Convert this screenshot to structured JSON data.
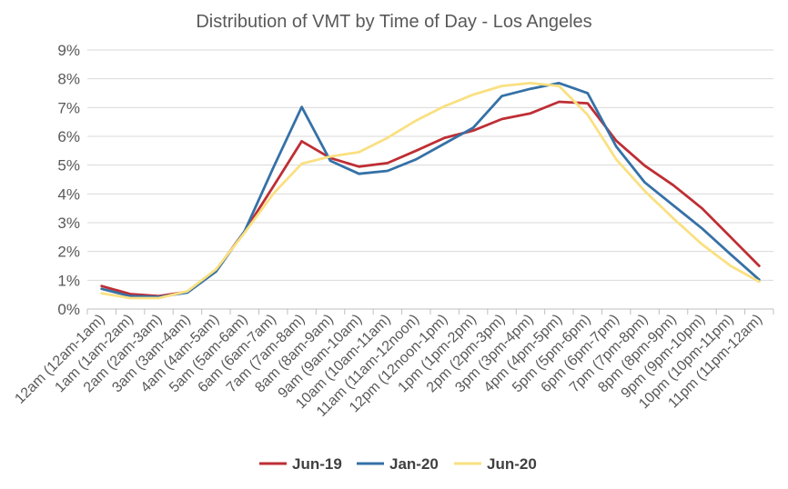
{
  "chart_data": {
    "type": "line",
    "title": "Distribution  of VMT by Time of Day - Los Angeles",
    "xlabel": "",
    "ylabel": "",
    "ylim": [
      0,
      9
    ],
    "y_ticks": [
      "0%",
      "1%",
      "2%",
      "3%",
      "4%",
      "5%",
      "6%",
      "7%",
      "8%",
      "9%"
    ],
    "grid": "horizontal",
    "legend_position": "bottom",
    "categories": [
      "12am (12am-1am)",
      "1am (1am-2am)",
      "2am (2am-3am)",
      "3am (3am-4am)",
      "4am (4am-5am)",
      "5am (5am-6am)",
      "6am (6am-7am)",
      "7am (7am-8am)",
      "8am (8am-9am)",
      "9am (9am-10am)",
      "10am (10am-11am)",
      "11am (11am-12noon)",
      "12pm (12noon-1pm)",
      "1pm (1pm-2pm)",
      "2pm (2pm-3pm)",
      "3pm (3pm-4pm)",
      "4pm (4pm-5pm)",
      "5pm (5pm-6pm)",
      "6pm (6pm-7pm)",
      "7pm (7pm-8pm)",
      "8pm (8pm-9pm)",
      "9pm (9pm-10pm)",
      "10pm (10pm-11pm)",
      "11pm (11pm-12am)"
    ],
    "series": [
      {
        "name": "Jun-19",
        "color": "#BE2E34",
        "values": [
          0.8,
          0.52,
          0.45,
          0.6,
          1.35,
          2.7,
          4.25,
          5.83,
          5.25,
          4.95,
          5.07,
          5.5,
          5.95,
          6.2,
          6.6,
          6.8,
          7.2,
          7.15,
          5.85,
          4.98,
          4.3,
          3.5,
          2.5,
          1.5
        ]
      },
      {
        "name": "Jan-20",
        "color": "#3571A7",
        "values": [
          0.7,
          0.45,
          0.42,
          0.57,
          1.3,
          2.7,
          4.9,
          7.02,
          5.15,
          4.7,
          4.8,
          5.2,
          5.75,
          6.3,
          7.4,
          7.65,
          7.85,
          7.5,
          5.65,
          4.4,
          3.6,
          2.8,
          1.9,
          1.02
        ]
      },
      {
        "name": "Jun-20",
        "color": "#FAE082",
        "values": [
          0.55,
          0.38,
          0.38,
          0.62,
          1.38,
          2.65,
          4.0,
          5.05,
          5.3,
          5.45,
          5.95,
          6.55,
          7.05,
          7.45,
          7.75,
          7.85,
          7.75,
          6.75,
          5.2,
          4.1,
          3.15,
          2.25,
          1.5,
          0.95
        ]
      }
    ]
  }
}
